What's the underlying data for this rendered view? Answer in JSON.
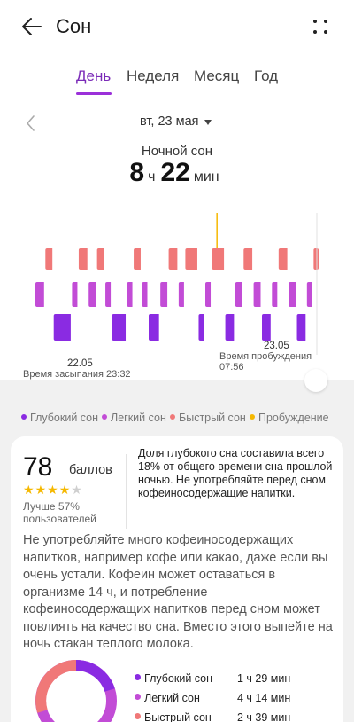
{
  "header": {
    "title": "Сон"
  },
  "tabs": [
    {
      "label": "День",
      "active": true
    },
    {
      "label": "Неделя",
      "active": false
    },
    {
      "label": "Месяц",
      "active": false
    },
    {
      "label": "Год",
      "active": false
    }
  ],
  "date": {
    "label": "вт, 23 мая"
  },
  "night_sleep": {
    "label": "Ночной сон",
    "hours": "8",
    "hours_unit": "ч",
    "minutes": "22",
    "minutes_unit": "мин"
  },
  "chart": {
    "tick_left": "22.05",
    "tick_right": "23.05",
    "sleep_start": "Время засыпания 23:32",
    "wake_up": "Время пробуждения 07:56"
  },
  "chart_data": {
    "type": "hypnogram",
    "stages": [
      "Быстрый сон",
      "Легкий сон",
      "Глубокий сон"
    ],
    "segments": [
      {
        "stage": "Легкий сон",
        "start": 0,
        "end": 12
      },
      {
        "stage": "Быстрый сон",
        "start": 12,
        "end": 22
      },
      {
        "stage": "Глубокий сон",
        "start": 22,
        "end": 44
      },
      {
        "stage": "Легкий сон",
        "start": 44,
        "end": 52
      },
      {
        "stage": "Быстрый сон",
        "start": 52,
        "end": 64
      },
      {
        "stage": "Легкий сон",
        "start": 64,
        "end": 74
      },
      {
        "stage": "Быстрый сон",
        "start": 74,
        "end": 84
      },
      {
        "stage": "Легкий сон",
        "start": 84,
        "end": 92
      },
      {
        "stage": "Глубокий сон",
        "start": 92,
        "end": 110
      },
      {
        "stage": "Легкий сон",
        "start": 110,
        "end": 118
      },
      {
        "stage": "Быстрый сон",
        "start": 118,
        "end": 128
      },
      {
        "stage": "Легкий сон",
        "start": 128,
        "end": 136
      },
      {
        "stage": "Глубокий сон",
        "start": 136,
        "end": 150
      },
      {
        "stage": "Легкий сон",
        "start": 150,
        "end": 160
      },
      {
        "stage": "Быстрый сон",
        "start": 160,
        "end": 172
      },
      {
        "stage": "Легкий сон",
        "start": 172,
        "end": 180
      },
      {
        "stage": "Быстрый сон",
        "start": 180,
        "end": 196
      },
      {
        "stage": "Глубокий сон",
        "start": 196,
        "end": 204
      },
      {
        "stage": "Легкий сон",
        "start": 204,
        "end": 212
      },
      {
        "stage": "Быстрый сон",
        "start": 212,
        "end": 228
      },
      {
        "stage": "Глубокий сон",
        "start": 228,
        "end": 240
      },
      {
        "stage": "Легкий сон",
        "start": 240,
        "end": 250
      },
      {
        "stage": "Быстрый сон",
        "start": 250,
        "end": 262
      },
      {
        "stage": "Легкий сон",
        "start": 262,
        "end": 272
      },
      {
        "stage": "Глубокий сон",
        "start": 272,
        "end": 284
      },
      {
        "stage": "Легкий сон",
        "start": 284,
        "end": 292
      },
      {
        "stage": "Быстрый сон",
        "start": 292,
        "end": 304
      },
      {
        "stage": "Легкий сон",
        "start": 304,
        "end": 314
      },
      {
        "stage": "Глубокий сон",
        "start": 314,
        "end": 326
      },
      {
        "stage": "Легкий сон",
        "start": 326,
        "end": 334
      },
      {
        "stage": "Быстрый сон",
        "start": 334,
        "end": 340
      }
    ],
    "wake_marks": [
      218
    ],
    "total_units": 340
  },
  "legend": [
    {
      "label": "Глубокий сон",
      "color": "#8a2be2"
    },
    {
      "label": "Легкий сон",
      "color": "#c24cd6"
    },
    {
      "label": "Быстрый сон",
      "color": "#f07878"
    },
    {
      "label": "Пробуждение",
      "color": "#f5b800"
    }
  ],
  "score": {
    "value": "78",
    "unit": "баллов",
    "stars_filled": 4,
    "stars_total": 5,
    "rank_line1": "Лучше 57%",
    "rank_line2": "пользователей"
  },
  "summary": "Доля глубокого сна составила всего 18% от общего времени сна прошлой ночью. Не употребляйте перед сном кофеиносодержащие напитки.",
  "advice": "Не употребляйте много кофеиносодержащих напитков, например кофе или какао, даже если вы очень устали. Кофеин может оставаться в организме 14 ч, и потребление кофеиносодержащих напитков перед сном может повлиять на качество сна. Вместо этого выпейте на ночь стакан теплого молока.",
  "stages": [
    {
      "name": "Глубокий сон",
      "value": "1 ч 29 мин",
      "color": "#8a2be2"
    },
    {
      "name": "Легкий сон",
      "value": "4 ч 14 мин",
      "color": "#c24cd6"
    },
    {
      "name": "Быстрый сон",
      "value": "2 ч 39 мин",
      "color": "#f07878"
    }
  ]
}
